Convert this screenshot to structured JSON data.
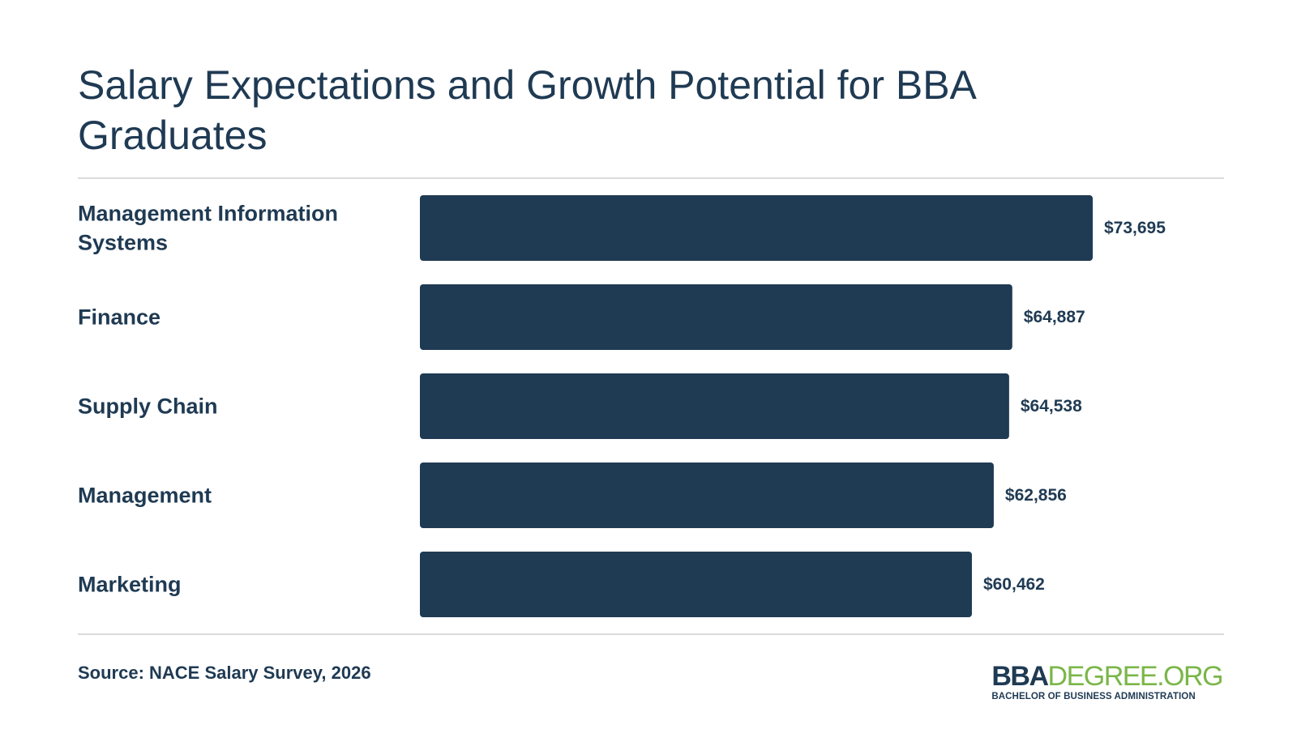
{
  "title": "Salary Expectations and Growth Potential for BBA Graduates",
  "colors": {
    "bar": "#1f3a53",
    "text": "#1f3a53",
    "rule": "#dcdcdc",
    "logo_accent": "#7ab648"
  },
  "chart_data": {
    "type": "bar",
    "orientation": "horizontal",
    "title": "Salary Expectations and Growth Potential for BBA Graduates",
    "categories": [
      [
        "Management Information",
        "Systems"
      ],
      [
        "Finance"
      ],
      [
        "Supply Chain"
      ],
      [
        "Management"
      ],
      [
        "Marketing"
      ]
    ],
    "values": [
      73695,
      64887,
      64538,
      62856,
      60462
    ],
    "value_labels": [
      "$73,695",
      "$64,887",
      "$64,538",
      "$62,856",
      "$60,462"
    ],
    "xlim": [
      0,
      73695
    ],
    "grid": false,
    "legend": "none"
  },
  "source": "Source: NACE Salary Survey, 2026",
  "logo": {
    "part_bold": "BBA",
    "part_light": "DEGREE.ORG",
    "tagline": "BACHELOR OF BUSINESS ADMINISTRATION"
  }
}
